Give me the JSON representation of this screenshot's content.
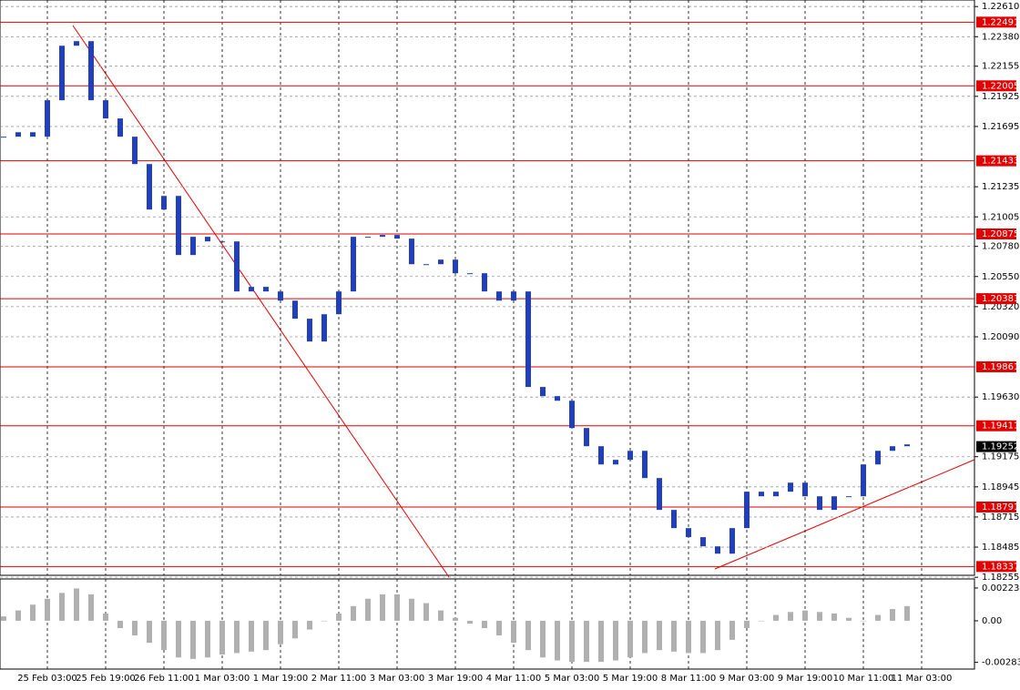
{
  "chart_data": {
    "type": "candlestick",
    "categories": [
      null,
      null,
      null,
      "25 Feb 03:00",
      null,
      null,
      null,
      "25 Feb 19:00",
      null,
      null,
      null,
      "26 Feb 11:00",
      null,
      null,
      null,
      "1 Mar 03:00",
      null,
      null,
      null,
      "1 Mar 19:00",
      null,
      null,
      null,
      "2 Mar 11:00",
      null,
      null,
      null,
      "3 Mar 03:00",
      null,
      null,
      null,
      "3 Mar 19:00",
      null,
      null,
      null,
      "4 Mar 11:00",
      null,
      null,
      null,
      "5 Mar 03:00",
      null,
      null,
      null,
      "5 Mar 19:00",
      null,
      null,
      null,
      "8 Mar 11:00",
      null,
      null,
      null,
      "9 Mar 03:00",
      null,
      null,
      null,
      "9 Mar 19:00",
      null,
      null,
      null,
      "10 Mar 11:00",
      null,
      null,
      null,
      "11 Mar 03:00"
    ],
    "values": [
      1.21617,
      1.21651,
      1.21617,
      1.21895,
      1.22311,
      1.22346,
      1.21895,
      1.21756,
      1.21617,
      1.21408,
      1.21061,
      1.21165,
      1.20714,
      1.20853,
      1.20818,
      1.20818,
      1.20436,
      1.20471,
      1.20436,
      1.20366,
      1.20228,
      1.20054,
      1.20262,
      1.20436,
      1.20853,
      1.20853,
      1.20867,
      1.20839,
      1.20644,
      1.20644,
      1.20679,
      1.20575,
      1.20575,
      1.20436,
      1.20366,
      1.20436,
      1.19707,
      1.19637,
      1.19602,
      1.19394,
      1.19255,
      1.19116,
      1.19151,
      1.1922,
      1.19012,
      1.18769,
      1.1863,
      1.18561,
      1.18491,
      1.18435,
      1.1863,
      1.18908,
      1.18873,
      1.18908,
      1.18977,
      1.18873,
      1.18769,
      1.18873,
      1.18873,
      1.19116,
      1.1922,
      1.19255,
      1.19269,
      null
    ],
    "color": "#1f3fbf",
    "ylim": [
      1.1827,
      1.2266
    ],
    "yticks": [
      {
        "value": 1.2261,
        "label": "1.22610"
      },
      {
        "value": 1.2238,
        "label": "1.22380"
      },
      1.22155,
      1.21925,
      1.21695,
      1.21235,
      1.21005,
      {
        "value": 1.2078,
        "label": "1.20780"
      },
      {
        "value": 1.2055,
        "label": "1.20550"
      },
      {
        "value": 1.2032,
        "label": "1.20320"
      },
      {
        "value": 1.2009,
        "label": "1.20090"
      },
      {
        "value": 1.1963,
        "label": "1.19630"
      },
      1.19175,
      1.18945,
      1.18715,
      1.18485,
      1.18255
    ],
    "levels": [
      1.22491,
      1.22005,
      1.21433,
      1.20875,
      1.20381,
      1.19861,
      1.19411,
      1.18791,
      1.18337
    ],
    "level_color": "#e00000",
    "current_price": 1.19252,
    "grid": true,
    "macd": {
      "values": [
        0.0003,
        0.0007,
        0.0011,
        0.0015,
        0.0019,
        0.0022,
        0.0018,
        0.0005,
        -0.0005,
        -0.001,
        -0.0015,
        -0.002,
        -0.0025,
        -0.0026,
        -0.0025,
        -0.0023,
        -0.0022,
        -0.0021,
        -0.002,
        -0.0016,
        -0.0012,
        -0.0006,
        0,
        0.0005,
        0.001,
        0.0015,
        0.0018,
        0.0018,
        0.0015,
        0.0012,
        0.0007,
        0.0002,
        -0.0002,
        -0.0005,
        -0.001,
        -0.0015,
        -0.002,
        -0.0025,
        -0.0027,
        -0.0028,
        -0.0028,
        -0.0028,
        -0.0027,
        -0.0025,
        -0.0022,
        -0.002,
        -0.0021,
        -0.0022,
        -0.0022,
        -0.002,
        -0.0013,
        -0.0005,
        0,
        0.0004,
        0.0006,
        0.0007,
        0.0006,
        0.0005,
        0.0002,
        0,
        0.0004,
        0.0008,
        0.001,
        null
      ],
      "color": "#b0b0b0",
      "ylim": [
        -0.00329,
        0.00285
      ],
      "yticks": [
        0.002234,
        {
          "value": 0,
          "label": "0.00"
        },
        -0.002834
      ]
    }
  }
}
